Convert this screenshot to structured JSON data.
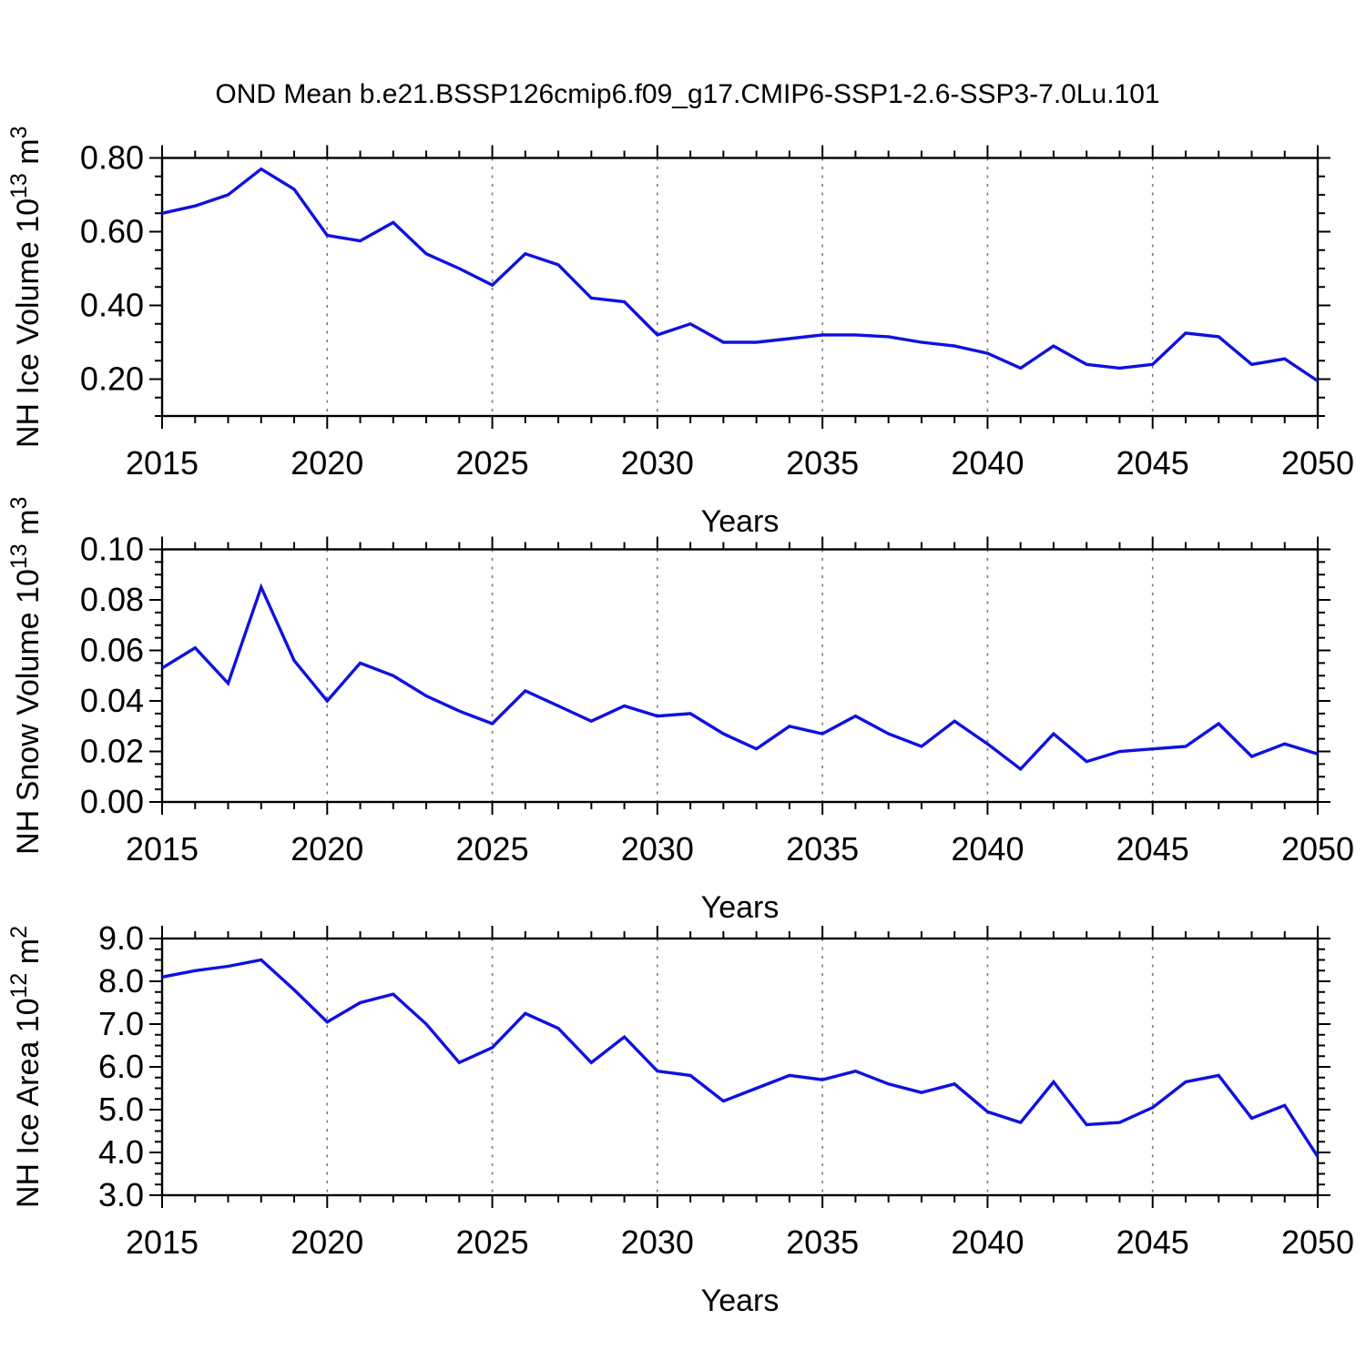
{
  "title": "OND Mean b.e21.BSSP126cmip6.f09_g17.CMIP6-SSP1-2.6-SSP3-7.0Lu.101",
  "line_color": "#1010E0",
  "gridline_color": "#7b7b7b",
  "frame_color": "#000000",
  "chart_data": [
    {
      "type": "line",
      "title": "OND Mean b.e21.BSSP126cmip6.f09_g17.CMIP6-SSP1-2.6-SSP3-7.0Lu.101",
      "xlabel": "Years",
      "ylabel": "NH Ice Volume 10^13 m^3",
      "ylabel_parts": [
        [
          "NH Ice Volume 10",
          0
        ],
        [
          "13",
          1
        ],
        [
          " m",
          0
        ],
        [
          "3",
          1
        ]
      ],
      "xlim": [
        2015,
        2050
      ],
      "ylim": [
        0.1,
        0.8
      ],
      "yticks_major": [
        0.2,
        0.4,
        0.6,
        0.8
      ],
      "ytick_decimals": 2,
      "yminor_step": 0.05,
      "xticks_major": [
        2015,
        2020,
        2025,
        2030,
        2035,
        2040,
        2045,
        2050
      ],
      "xminor_step": 1,
      "grid_x": [
        2020,
        2025,
        2030,
        2035,
        2040,
        2045
      ],
      "x": [
        2015,
        2016,
        2017,
        2018,
        2019,
        2020,
        2021,
        2022,
        2023,
        2024,
        2025,
        2026,
        2027,
        2028,
        2029,
        2030,
        2031,
        2032,
        2033,
        2034,
        2035,
        2036,
        2037,
        2038,
        2039,
        2040,
        2041,
        2042,
        2043,
        2044,
        2045,
        2046,
        2047,
        2048,
        2049,
        2050
      ],
      "values": [
        0.65,
        0.67,
        0.7,
        0.77,
        0.715,
        0.59,
        0.575,
        0.625,
        0.54,
        0.5,
        0.455,
        0.54,
        0.51,
        0.42,
        0.41,
        0.32,
        0.35,
        0.3,
        0.3,
        0.31,
        0.32,
        0.32,
        0.315,
        0.3,
        0.29,
        0.27,
        0.23,
        0.29,
        0.24,
        0.23,
        0.24,
        0.325,
        0.315,
        0.24,
        0.255,
        0.195
      ]
    },
    {
      "type": "line",
      "title": "",
      "xlabel": "Years",
      "ylabel": "NH Snow Volume 10^13 m^3",
      "ylabel_parts": [
        [
          "NH Snow Volume 10",
          0
        ],
        [
          "13",
          1
        ],
        [
          " m",
          0
        ],
        [
          "3",
          1
        ]
      ],
      "xlim": [
        2015,
        2050
      ],
      "ylim": [
        0.0,
        0.1
      ],
      "yticks_major": [
        0.0,
        0.02,
        0.04,
        0.06,
        0.08,
        0.1
      ],
      "ytick_decimals": 2,
      "yminor_step": 0.005,
      "xticks_major": [
        2015,
        2020,
        2025,
        2030,
        2035,
        2040,
        2045,
        2050
      ],
      "xminor_step": 1,
      "grid_x": [
        2020,
        2025,
        2030,
        2035,
        2040,
        2045
      ],
      "x": [
        2015,
        2016,
        2017,
        2018,
        2019,
        2020,
        2021,
        2022,
        2023,
        2024,
        2025,
        2026,
        2027,
        2028,
        2029,
        2030,
        2031,
        2032,
        2033,
        2034,
        2035,
        2036,
        2037,
        2038,
        2039,
        2040,
        2041,
        2042,
        2043,
        2044,
        2045,
        2046,
        2047,
        2048,
        2049,
        2050
      ],
      "values": [
        0.053,
        0.061,
        0.047,
        0.085,
        0.056,
        0.04,
        0.055,
        0.05,
        0.042,
        0.036,
        0.031,
        0.044,
        0.038,
        0.032,
        0.038,
        0.034,
        0.035,
        0.027,
        0.021,
        0.03,
        0.027,
        0.034,
        0.027,
        0.022,
        0.032,
        0.023,
        0.013,
        0.027,
        0.016,
        0.02,
        0.021,
        0.022,
        0.031,
        0.018,
        0.023,
        0.019
      ]
    },
    {
      "type": "line",
      "title": "",
      "xlabel": "Years",
      "ylabel": "NH Ice Area 10^12 m^2",
      "ylabel_parts": [
        [
          "NH Ice Area 10",
          0
        ],
        [
          "12",
          1
        ],
        [
          " m",
          0
        ],
        [
          "2",
          1
        ]
      ],
      "xlim": [
        2015,
        2050
      ],
      "ylim": [
        3.0,
        9.0
      ],
      "yticks_major": [
        3.0,
        4.0,
        5.0,
        6.0,
        7.0,
        8.0,
        9.0
      ],
      "ytick_decimals": 1,
      "yminor_step": 0.25,
      "xticks_major": [
        2015,
        2020,
        2025,
        2030,
        2035,
        2040,
        2045,
        2050
      ],
      "xminor_step": 1,
      "grid_x": [
        2020,
        2025,
        2030,
        2035,
        2040,
        2045
      ],
      "x": [
        2015,
        2016,
        2017,
        2018,
        2019,
        2020,
        2021,
        2022,
        2023,
        2024,
        2025,
        2026,
        2027,
        2028,
        2029,
        2030,
        2031,
        2032,
        2033,
        2034,
        2035,
        2036,
        2037,
        2038,
        2039,
        2040,
        2041,
        2042,
        2043,
        2044,
        2045,
        2046,
        2047,
        2048,
        2049,
        2050
      ],
      "values": [
        8.1,
        8.25,
        8.35,
        8.5,
        7.8,
        7.05,
        7.5,
        7.7,
        7.0,
        6.1,
        6.45,
        7.25,
        6.9,
        6.1,
        6.7,
        5.9,
        5.8,
        5.2,
        5.5,
        5.8,
        5.7,
        5.9,
        5.6,
        5.4,
        5.6,
        4.95,
        4.7,
        5.65,
        4.65,
        4.7,
        5.05,
        5.65,
        5.8,
        4.8,
        5.1,
        3.9
      ]
    }
  ]
}
